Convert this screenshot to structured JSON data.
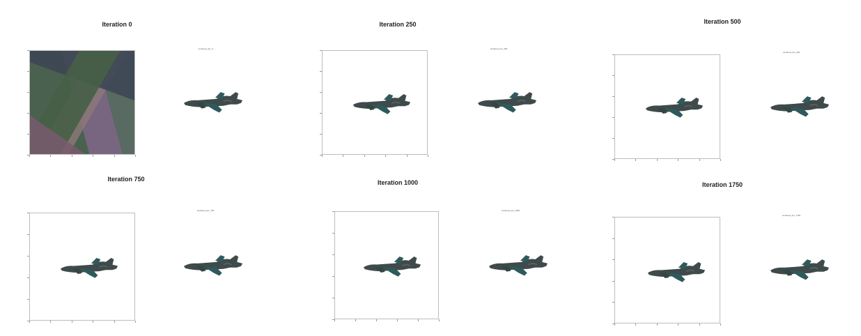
{
  "panels": [
    {
      "title": "Iteration 0",
      "subtitle": "rendered_iter_0",
      "noise": true
    },
    {
      "title": "Iteration 250",
      "subtitle": "rendered_iter_250",
      "noise": false
    },
    {
      "title": "Iteration 500",
      "subtitle": "rendered_iter_500",
      "noise": false
    },
    {
      "title": "Iteration 750",
      "subtitle": "rendered_iter_750",
      "noise": false
    },
    {
      "title": "Iteration 1000",
      "subtitle": "rendered_iter_1000",
      "noise": false
    },
    {
      "title": "Iteration 1750",
      "subtitle": "rendered_iter_1750",
      "noise": false
    }
  ],
  "colors": {
    "plane_body": "#3f4a4a",
    "plane_fin": "#2f5a5c",
    "frame_border": "#bdbdbd"
  }
}
